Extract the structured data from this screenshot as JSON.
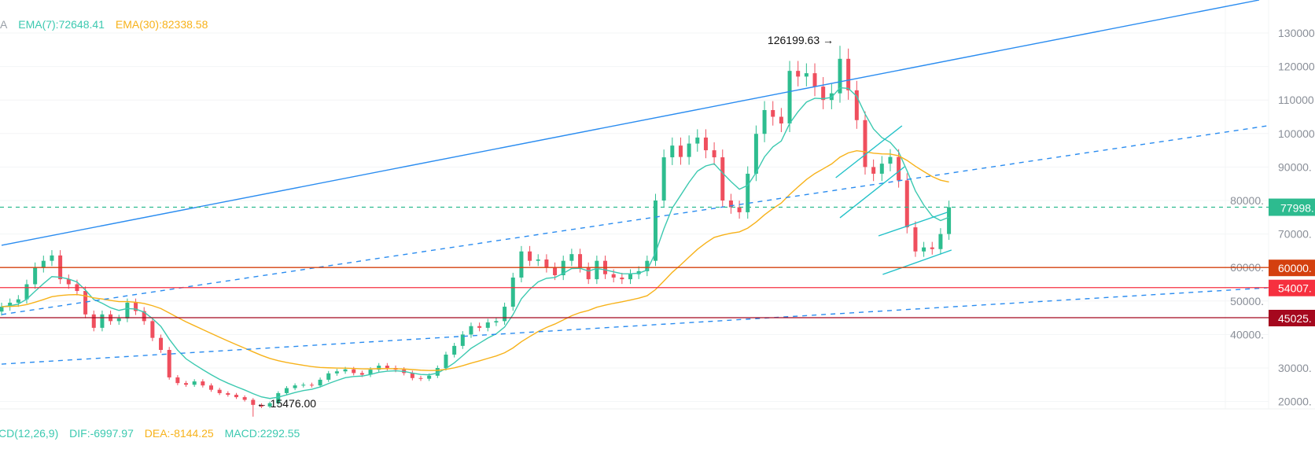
{
  "legend": {
    "prefix": "A",
    "ema7": "EMA(7):72648.41",
    "ema30": "EMA(30):82338.58"
  },
  "macd": {
    "label": "CD(12,26,9)",
    "dif": "DIF:-6997.97",
    "dea": "DEA:-8144.25",
    "macd": "MACD:2292.55"
  },
  "colors": {
    "up": "#2ebd8f",
    "down": "#ef4f5e",
    "ema7": "#3cc9b0",
    "ema30": "#f7b21a",
    "trend": "#2a8cf0",
    "channel": "#22c1c8",
    "last_price": "#2dbb8f"
  },
  "chart_data": {
    "type": "candlestick",
    "ylim": [
      10000,
      140000
    ],
    "yticks": [
      "130000",
      "120000",
      "110000",
      "100000",
      "90000.",
      "80000.",
      "70000.",
      "60000.",
      "50000.",
      "40000.",
      "30000.",
      "20000."
    ],
    "ytick_values": [
      130000,
      120000,
      110000,
      100000,
      90000,
      80000,
      70000,
      60000,
      50000,
      40000,
      30000,
      20000
    ],
    "grid": true,
    "closes": [
      48300,
      49500,
      50500,
      55000,
      60000,
      62000,
      63600,
      56500,
      55000,
      53000,
      46000,
      42000,
      46000,
      44000,
      44800,
      49500,
      47000,
      44000,
      39000,
      35400,
      27200,
      25500,
      25000,
      26000,
      24800,
      23500,
      22500,
      22000,
      21300,
      20500,
      19000,
      18500,
      19500,
      22500,
      24000,
      24800,
      25000,
      24800,
      26500,
      28400,
      29000,
      29600,
      28500,
      28000,
      29500,
      30700,
      30000,
      29500,
      28500,
      27000,
      26800,
      27700,
      30000,
      34000,
      36600,
      40000,
      42500,
      42000,
      43600,
      44000,
      48300,
      57000,
      64800,
      62000,
      62400,
      60000,
      57700,
      62000,
      64000,
      60000,
      56500,
      62000,
      58000,
      57000,
      56500,
      58000,
      58900,
      62000,
      80000,
      92900,
      96400,
      93000,
      97000,
      98800,
      95000,
      92900,
      80000,
      78000,
      76500,
      88000,
      99900,
      107000,
      105000,
      103000,
      118700,
      117000,
      118000,
      114000,
      110000,
      112000,
      122300,
      112900,
      104000,
      90000,
      88000,
      91000,
      93000,
      86000,
      72000,
      64800,
      66000,
      65500,
      70000,
      77998
    ],
    "ema_periods": [
      7,
      30
    ],
    "horizontal_levels": [
      {
        "value": 60000,
        "label": "60000.",
        "color": "#d4400f"
      },
      {
        "value": 54007,
        "label": "54007.",
        "color": "#f6303f"
      },
      {
        "value": 45025,
        "label": "45025.",
        "color": "#a5081e"
      }
    ],
    "last_price": {
      "value": 77998,
      "label": "77998."
    },
    "trendlines": [
      {
        "style": "solid",
        "color": "trend",
        "from": [
          0,
          66620
        ],
        "to": [
          150,
          139860
        ]
      },
      {
        "style": "dashed",
        "color": "trend",
        "from": [
          0,
          45960
        ],
        "to": [
          151,
          102300
        ]
      },
      {
        "style": "dashed",
        "color": "trend",
        "from": [
          0,
          31170
        ],
        "to": [
          151,
          53940
        ]
      },
      {
        "style": "solid",
        "color": "channel",
        "from": [
          99.5,
          86810
        ],
        "to": [
          107.4,
          102300
        ]
      },
      {
        "style": "solid",
        "color": "channel",
        "from": [
          100,
          74840
        ],
        "to": [
          107.7,
          90090
        ]
      },
      {
        "style": "solid",
        "color": "channel",
        "from": [
          104.6,
          69440
        ],
        "to": [
          112.8,
          76480
        ]
      },
      {
        "style": "solid",
        "color": "channel",
        "from": [
          105.1,
          57930
        ],
        "to": [
          113.3,
          65210
        ]
      }
    ],
    "annotations": [
      {
        "type": "high",
        "index": 100,
        "value": 126199.63,
        "text": "126199.63"
      },
      {
        "type": "low",
        "index": 30,
        "value": 15476,
        "text": "15476.00"
      }
    ]
  }
}
